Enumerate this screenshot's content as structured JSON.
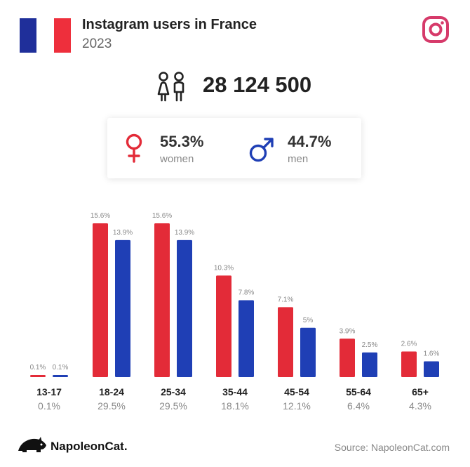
{
  "header": {
    "title": "Instagram users in France",
    "year": "2023"
  },
  "colors": {
    "women": "#e32b38",
    "men": "#1f3fb5",
    "flag_blue": "#1f2f9a",
    "flag_white": "#ffffff",
    "flag_red": "#ee2f3c",
    "instagram": "#d63a6a"
  },
  "icons": {
    "flag": "france-flag-icon",
    "logo": "instagram-icon",
    "people": "people-icon",
    "female": "female-symbol-icon",
    "male": "male-symbol-icon",
    "brand": "napoleoncat-logo-icon"
  },
  "total": {
    "value": "28 124 500"
  },
  "gender": {
    "women_pct": "55.3%",
    "women_label": "women",
    "men_pct": "44.7%",
    "men_label": "men"
  },
  "chart_data": {
    "type": "bar",
    "title": "Instagram users in France",
    "categories": [
      "13-17",
      "18-24",
      "25-34",
      "35-44",
      "45-54",
      "55-64",
      "65+"
    ],
    "category_totals": [
      "0.1%",
      "29.5%",
      "29.5%",
      "18.1%",
      "12.1%",
      "6.4%",
      "4.3%"
    ],
    "series": [
      {
        "name": "women",
        "values": [
          0.1,
          15.6,
          15.6,
          10.3,
          7.1,
          3.9,
          2.6
        ],
        "labels": [
          "0.1%",
          "15.6%",
          "15.6%",
          "10.3%",
          "7.1%",
          "3.9%",
          "2.6%"
        ]
      },
      {
        "name": "men",
        "values": [
          0.1,
          13.9,
          13.9,
          7.8,
          5.0,
          2.5,
          1.6
        ],
        "labels": [
          "0.1%",
          "13.9%",
          "13.9%",
          "7.8%",
          "5%",
          "2.5%",
          "1.6%"
        ]
      }
    ],
    "ylim": [
      0,
      15.6
    ],
    "grid": false,
    "legend": "none"
  },
  "footer": {
    "brand": "NapoleonCat.",
    "source": "Source: NapoleonCat.com"
  }
}
